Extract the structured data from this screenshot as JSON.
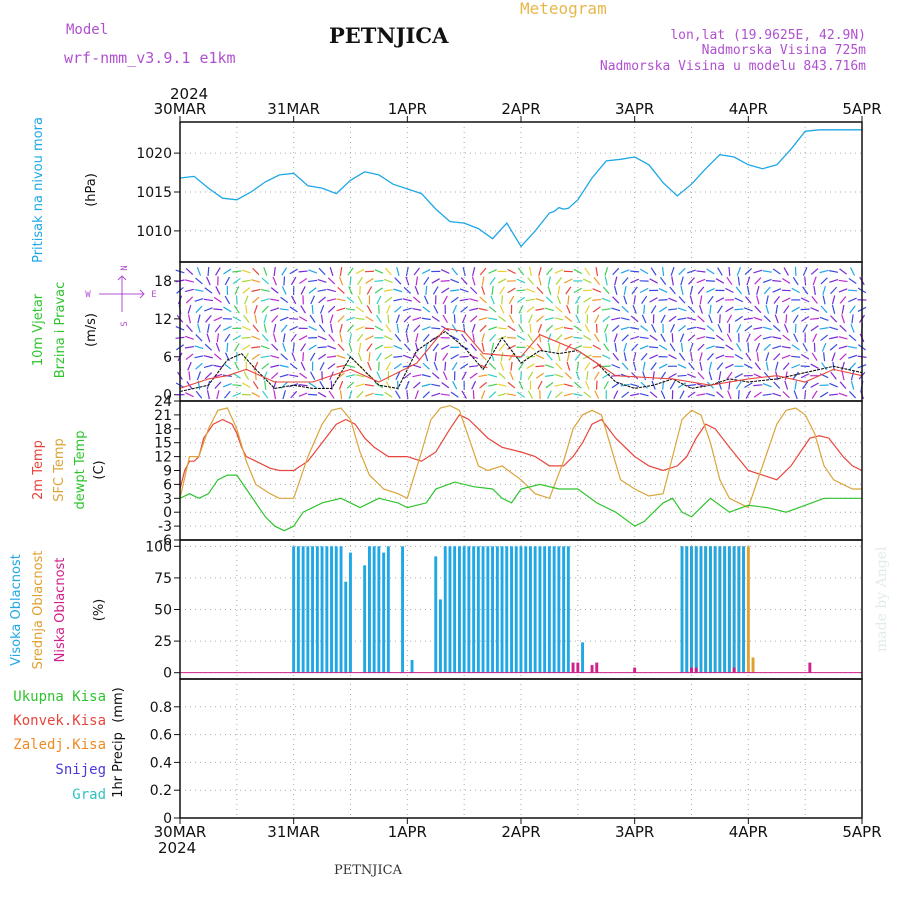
{
  "header": {
    "model_label": "Model",
    "model_name": "wrf-nmm_v3.9.1 e1km",
    "station": "PETNJICA",
    "meteogram": "Meteogram",
    "lonlat": "lon,lat (19.9625E, 42.9N)",
    "elevation": "Nadmorska Visina 725m",
    "model_elevation": "Nadmorska Visina u modelu 843.716m",
    "footer_station": "PETNJICA",
    "credit": "made by Angel"
  },
  "time_axis": {
    "year": "2024",
    "day_labels": [
      "30MAR",
      "31MAR",
      "1APR",
      "2APR",
      "3APR",
      "4APR",
      "5APR"
    ],
    "range_hours": [
      0,
      144
    ]
  },
  "colors": {
    "pressure": "#1fa7e6",
    "temp2m": "#e8453c",
    "sfc": "#dba43b",
    "dewpt": "#2fc42f",
    "wind_speed": "#111111",
    "wind_gust": "#e8453c",
    "cloud_high": "#1fa7e6",
    "cloud_mid": "#e0a030",
    "cloud_low": "#d0208a",
    "precip_total": "#2fc42f",
    "precip_conv": "#e8453c",
    "precip_frz": "#f08a24",
    "precip_snow": "#4a3ad8",
    "precip_hail": "#2fc4c4",
    "title_purple": "#b050d0",
    "meteogram_orange": "#e6b84a"
  },
  "chart_data": [
    {
      "type": "line",
      "panel": "pressure",
      "ylabel": "Pritisak na nivou mora",
      "unit": "(hPa)",
      "ylim": [
        1006,
        1024
      ],
      "yticks": [
        1010,
        1015,
        1020
      ],
      "grid": true,
      "series": [
        {
          "x": [
            0,
            3,
            6,
            9,
            12,
            15,
            18,
            21,
            24,
            27,
            30,
            33,
            36,
            39,
            42,
            45,
            48,
            51,
            54,
            57,
            60,
            63,
            66,
            69,
            72,
            75,
            78,
            79,
            80,
            81,
            82,
            84,
            87,
            90,
            93,
            96,
            99,
            102,
            105,
            108,
            111,
            114,
            117,
            120,
            123,
            126,
            129,
            132,
            135,
            138,
            141,
            144
          ],
          "values": [
            1016.8,
            1017.0,
            1015.5,
            1014.2,
            1014.0,
            1015.0,
            1016.3,
            1017.2,
            1017.4,
            1015.8,
            1015.5,
            1014.8,
            1016.5,
            1017.6,
            1017.2,
            1016.0,
            1015.4,
            1014.8,
            1012.8,
            1011.2,
            1011.0,
            1010.3,
            1009.0,
            1011.0,
            1008.0,
            1010.0,
            1012.3,
            1012.5,
            1013.0,
            1012.8,
            1012.9,
            1014.0,
            1016.8,
            1019.0,
            1019.2,
            1019.5,
            1018.5,
            1016.2,
            1014.5,
            1016.0,
            1018.0,
            1019.8,
            1019.5,
            1018.5,
            1018.0,
            1018.5,
            1020.5,
            1022.8,
            1023.0,
            1023.0,
            1023.0,
            1023.0
          ]
        }
      ]
    },
    {
      "type": "line",
      "panel": "wind",
      "ylabel": "10m Vjetar",
      "ylabel2": "Brzina i Pravac",
      "unit": "(m/s)",
      "direction_key": [
        "N",
        "E",
        "S",
        "W"
      ],
      "ylim": [
        -1,
        21
      ],
      "yticks": [
        0,
        6,
        12,
        18
      ],
      "grid": true,
      "series": [
        {
          "name": "speed",
          "x": [
            0,
            6,
            10,
            13,
            16,
            20,
            24,
            28,
            32,
            36,
            38,
            42,
            46,
            50,
            56,
            60,
            64,
            68,
            72,
            76,
            80,
            84,
            88,
            92,
            96,
            100,
            104,
            108,
            112,
            116,
            120,
            126,
            132,
            138,
            144
          ],
          "values": [
            0.5,
            1.5,
            5.5,
            6.5,
            4.0,
            1.0,
            1.5,
            1.0,
            1.0,
            6.0,
            4.5,
            1.5,
            1.0,
            7.0,
            10.0,
            7.5,
            4.0,
            9.0,
            5.0,
            7.0,
            6.5,
            7.0,
            5.0,
            2.0,
            1.0,
            1.5,
            2.5,
            1.0,
            1.5,
            2.5,
            2.0,
            2.5,
            3.5,
            4.5,
            3.5
          ]
        },
        {
          "name": "gust",
          "x": [
            0,
            6,
            10,
            14,
            20,
            28,
            36,
            42,
            50,
            56,
            60,
            64,
            72,
            76,
            84,
            92,
            104,
            112,
            120,
            126,
            132,
            138,
            144
          ],
          "values": [
            1.0,
            2.5,
            3.0,
            4.0,
            2.0,
            2.0,
            4.0,
            2.0,
            5.0,
            10.5,
            10.0,
            6.5,
            6.0,
            9.5,
            7.0,
            3.0,
            2.5,
            1.5,
            2.5,
            3.0,
            2.0,
            4.0,
            3.0
          ]
        }
      ]
    },
    {
      "type": "line",
      "panel": "temperature",
      "ylabel": "2m Temp",
      "ylabel2": "SFC Temp",
      "ylabel3": "dewpt Temp",
      "unit": "(C)",
      "ylim": [
        -6,
        24
      ],
      "yticks": [
        -6,
        -3,
        0,
        3,
        6,
        9,
        12,
        15,
        18,
        21,
        24
      ],
      "grid": true,
      "series": [
        {
          "name": "2m",
          "x": [
            0,
            1,
            2,
            3,
            4,
            5,
            7,
            9,
            11,
            12,
            13,
            14,
            16,
            19,
            21,
            24,
            27,
            30,
            33,
            35,
            37,
            39,
            41,
            44,
            48,
            51,
            54,
            57,
            59,
            61,
            63,
            65,
            68,
            72,
            75,
            78,
            81,
            83,
            85,
            87,
            89,
            92,
            96,
            99,
            102,
            105,
            107,
            109,
            111,
            113,
            116,
            120,
            123,
            126,
            129,
            131,
            133,
            135,
            137,
            140,
            142,
            144
          ],
          "values": [
            5.0,
            9.0,
            11.0,
            11.0,
            12.0,
            16.0,
            19.0,
            20.0,
            19.0,
            17.0,
            14.0,
            12.0,
            11.0,
            9.5,
            9.0,
            9.0,
            11.0,
            15.0,
            19.0,
            20.0,
            19.0,
            16.0,
            14.0,
            12.0,
            12.0,
            11.0,
            13.0,
            18.0,
            21.0,
            20.0,
            18.0,
            16.0,
            14.0,
            13.0,
            12.0,
            10.0,
            10.0,
            12.0,
            15.0,
            19.0,
            20.0,
            16.0,
            12.0,
            10.0,
            9.0,
            10.0,
            12.0,
            16.0,
            19.0,
            18.0,
            14.0,
            9.0,
            8.0,
            7.0,
            10.0,
            13.0,
            16.0,
            16.5,
            16.0,
            12.0,
            10.0,
            9.0
          ]
        },
        {
          "name": "sfc",
          "x": [
            0,
            2,
            4,
            6,
            8,
            10,
            12,
            14,
            16,
            19,
            21,
            24,
            27,
            30,
            32,
            34,
            36,
            38,
            40,
            43,
            46,
            48,
            51,
            53,
            55,
            57,
            59,
            61,
            63,
            65,
            68,
            72,
            75,
            78,
            81,
            83,
            85,
            87,
            89,
            91,
            93,
            96,
            99,
            102,
            104,
            106,
            108,
            110,
            112,
            114,
            116,
            120,
            123,
            126,
            128,
            130,
            132,
            134,
            136,
            138,
            140,
            142,
            144
          ],
          "values": [
            3.0,
            12.0,
            12.0,
            18.0,
            22.0,
            22.5,
            18.0,
            11.0,
            6.0,
            4.0,
            3.0,
            3.0,
            12.0,
            19.0,
            22.0,
            22.5,
            20.0,
            13.0,
            8.0,
            5.0,
            4.0,
            3.0,
            13.0,
            20.0,
            22.5,
            23.0,
            22.0,
            16.0,
            10.0,
            9.0,
            10.0,
            7.0,
            4.0,
            3.0,
            11.0,
            18.0,
            21.0,
            22.0,
            21.0,
            14.0,
            7.0,
            5.0,
            3.5,
            4.0,
            12.0,
            20.0,
            22.0,
            21.0,
            15.0,
            7.0,
            3.0,
            1.0,
            10.0,
            19.0,
            22.0,
            22.5,
            21.0,
            17.0,
            10.0,
            7.0,
            6.0,
            5.0,
            5.0
          ]
        },
        {
          "name": "dewpt",
          "x": [
            0,
            2,
            4,
            6,
            8,
            10,
            12,
            14,
            16,
            18,
            20,
            22,
            24,
            26,
            28,
            30,
            34,
            38,
            42,
            46,
            48,
            52,
            54,
            58,
            62,
            66,
            68,
            70,
            72,
            76,
            80,
            84,
            88,
            92,
            96,
            98,
            100,
            102,
            104,
            106,
            108,
            112,
            116,
            120,
            124,
            128,
            132,
            136,
            140,
            144
          ],
          "values": [
            3.0,
            4.0,
            3.0,
            4.0,
            7.0,
            8.0,
            8.0,
            5.0,
            2.0,
            -1.0,
            -3.0,
            -4.0,
            -3.0,
            0.0,
            1.0,
            2.0,
            3.0,
            1.0,
            3.0,
            2.0,
            1.0,
            2.0,
            5.0,
            6.5,
            5.5,
            5.0,
            3.0,
            2.0,
            5.0,
            6.0,
            5.0,
            5.0,
            2.0,
            0.0,
            -3.0,
            -2.0,
            0.0,
            2.0,
            3.0,
            0.0,
            -1.0,
            3.0,
            0.0,
            1.5,
            1.0,
            0.0,
            1.5,
            3.0,
            3.0,
            3.0
          ]
        }
      ]
    },
    {
      "type": "bar",
      "panel": "cloud",
      "ylabel": "Visoka Oblacnost",
      "ylabel2": "Srednja Oblacnost",
      "ylabel3": "Niska Oblacnost",
      "unit": "(%)",
      "ylim": [
        -5,
        105
      ],
      "yticks": [
        0,
        25,
        50,
        75,
        100
      ],
      "grid": true,
      "high": {
        "x": [
          24,
          25,
          26,
          27,
          28,
          29,
          30,
          31,
          32,
          33,
          34,
          35,
          36,
          39,
          40,
          41,
          42,
          43,
          44,
          47,
          49,
          50,
          54,
          55,
          56,
          57,
          58,
          59,
          60,
          61,
          62,
          63,
          64,
          65,
          66,
          67,
          68,
          69,
          70,
          71,
          72,
          73,
          74,
          75,
          76,
          77,
          78,
          79,
          80,
          81,
          82,
          85,
          106,
          107,
          108,
          109,
          110,
          111,
          112,
          113,
          114,
          115,
          116,
          117,
          118,
          119
        ],
        "values": [
          100,
          100,
          100,
          100,
          100,
          100,
          100,
          100,
          100,
          100,
          100,
          72,
          95,
          85,
          100,
          100,
          100,
          95,
          100,
          100,
          10,
          0,
          92,
          58,
          100,
          100,
          100,
          100,
          100,
          100,
          100,
          100,
          100,
          100,
          100,
          100,
          100,
          100,
          100,
          100,
          100,
          100,
          100,
          100,
          100,
          100,
          100,
          100,
          100,
          100,
          100,
          24,
          100,
          100,
          100,
          100,
          100,
          100,
          100,
          100,
          100,
          100,
          100,
          100,
          100,
          100
        ]
      },
      "mid": {
        "x": [
          106,
          107,
          108,
          109,
          110,
          111,
          112,
          113,
          114,
          115,
          116,
          117,
          118,
          119,
          120,
          121
        ],
        "values": [
          100,
          100,
          100,
          100,
          100,
          100,
          100,
          100,
          100,
          100,
          100,
          100,
          100,
          100,
          100,
          12
        ]
      },
      "low": {
        "x": [
          83,
          84,
          87,
          88,
          96,
          108,
          109,
          117,
          133
        ],
        "values": [
          8,
          8,
          6,
          8,
          4,
          4,
          4,
          4,
          8
        ]
      }
    },
    {
      "type": "bar",
      "panel": "precip",
      "ylabel": "1hr Precip",
      "unit": "(mm)",
      "ylim": [
        0,
        1.0
      ],
      "yticks": [
        0,
        0.2,
        0.4,
        0.6,
        0.8
      ],
      "grid": true,
      "legend": [
        "Ukupna Kisa",
        "Konvek.Kisa",
        "Zaledj.Kisa",
        "Snijeg",
        "Grad"
      ],
      "values": []
    }
  ]
}
